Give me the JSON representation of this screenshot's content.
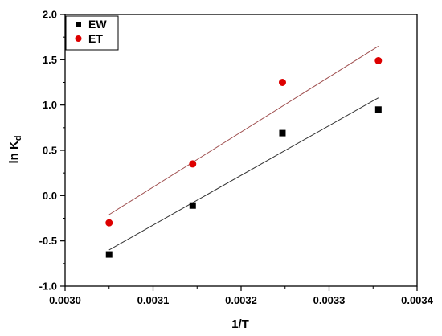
{
  "chart_data": {
    "type": "scatter",
    "xlabel": "1/T",
    "ylabel_main": "ln K",
    "ylabel_sub": "d",
    "xlim": [
      0.003,
      0.0034
    ],
    "ylim": [
      -1.0,
      2.0
    ],
    "x_ticks": [
      "0.0030",
      "0.0031",
      "0.0032",
      "0.0033",
      "0.0034"
    ],
    "y_ticks": [
      "-1.0",
      "-0.5",
      "0.0",
      "0.5",
      "1.0",
      "1.5",
      "2.0"
    ],
    "grid": false,
    "legend_position": "top-left",
    "series": [
      {
        "name": "EW",
        "marker": "square",
        "color": "#000000",
        "line_color": "#333333",
        "x": [
          0.00305,
          0.003145,
          0.003247,
          0.003356
        ],
        "y": [
          -0.65,
          -0.11,
          0.69,
          0.95
        ],
        "fit_x": [
          0.00305,
          0.003356
        ],
        "fit_y": [
          -0.6,
          1.08
        ]
      },
      {
        "name": "ET",
        "marker": "circle",
        "color": "#dd0000",
        "line_color": "#a05050",
        "x": [
          0.00305,
          0.003145,
          0.003247,
          0.003356
        ],
        "y": [
          -0.3,
          0.35,
          1.25,
          1.49
        ],
        "fit_x": [
          0.00305,
          0.003356
        ],
        "fit_y": [
          -0.21,
          1.65
        ]
      }
    ]
  }
}
